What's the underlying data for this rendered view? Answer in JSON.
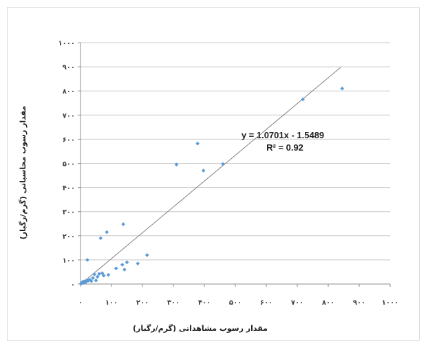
{
  "chart_data": {
    "type": "scatter",
    "title": "",
    "xlabel": "مقدار رسوب مشاهداتی (گرم/رگبار)",
    "ylabel": "مقدار رسوب محاسباتی (گرم/رگبار)",
    "xlim": [
      0,
      1000
    ],
    "ylim": [
      0,
      1000
    ],
    "x_ticks": [
      0,
      100,
      200,
      300,
      400,
      500,
      600,
      700,
      800,
      900,
      1000
    ],
    "y_ticks": [
      0,
      100,
      200,
      300,
      400,
      500,
      600,
      700,
      800,
      900,
      1000
    ],
    "x_tick_labels": [
      "۰",
      "۱۰۰",
      "۲۰۰",
      "۳۰۰",
      "۴۰۰",
      "۵۰۰",
      "۶۰۰",
      "۷۰۰",
      "۸۰۰",
      "۹۰۰",
      "۱۰۰۰"
    ],
    "y_tick_labels": [
      "۰",
      "۱۰۰",
      "۲۰۰",
      "۳۰۰",
      "۴۰۰",
      "۵۰۰",
      "۶۰۰",
      "۷۰۰",
      "۸۰۰",
      "۹۰۰",
      "۱۰۰۰"
    ],
    "grid": "horizontal",
    "marker_color": "#5b9bd5",
    "trendline_color": "#808080",
    "trendline": {
      "slope": 1.0701,
      "intercept": -1.5489,
      "x_range": [
        0,
        840
      ]
    },
    "equation_text": "y = 1.0701x - 1.5489",
    "r2_text": "R² = 0.92",
    "points": [
      {
        "x": 2,
        "y": 2
      },
      {
        "x": 4,
        "y": 5
      },
      {
        "x": 6,
        "y": 8
      },
      {
        "x": 8,
        "y": 4
      },
      {
        "x": 10,
        "y": 10
      },
      {
        "x": 12,
        "y": 6
      },
      {
        "x": 15,
        "y": 12
      },
      {
        "x": 18,
        "y": 9
      },
      {
        "x": 20,
        "y": 15
      },
      {
        "x": 22,
        "y": 100
      },
      {
        "x": 25,
        "y": 14
      },
      {
        "x": 30,
        "y": 18
      },
      {
        "x": 35,
        "y": 12
      },
      {
        "x": 40,
        "y": 25
      },
      {
        "x": 45,
        "y": 40
      },
      {
        "x": 50,
        "y": 15
      },
      {
        "x": 55,
        "y": 30
      },
      {
        "x": 60,
        "y": 42
      },
      {
        "x": 65,
        "y": 190
      },
      {
        "x": 70,
        "y": 45
      },
      {
        "x": 75,
        "y": 35
      },
      {
        "x": 85,
        "y": 215
      },
      {
        "x": 90,
        "y": 38
      },
      {
        "x": 115,
        "y": 65
      },
      {
        "x": 135,
        "y": 80
      },
      {
        "x": 138,
        "y": 248
      },
      {
        "x": 142,
        "y": 60
      },
      {
        "x": 150,
        "y": 90
      },
      {
        "x": 185,
        "y": 85
      },
      {
        "x": 215,
        "y": 120
      },
      {
        "x": 310,
        "y": 495
      },
      {
        "x": 378,
        "y": 582
      },
      {
        "x": 397,
        "y": 470
      },
      {
        "x": 460,
        "y": 497
      },
      {
        "x": 718,
        "y": 765
      },
      {
        "x": 845,
        "y": 810
      }
    ]
  }
}
